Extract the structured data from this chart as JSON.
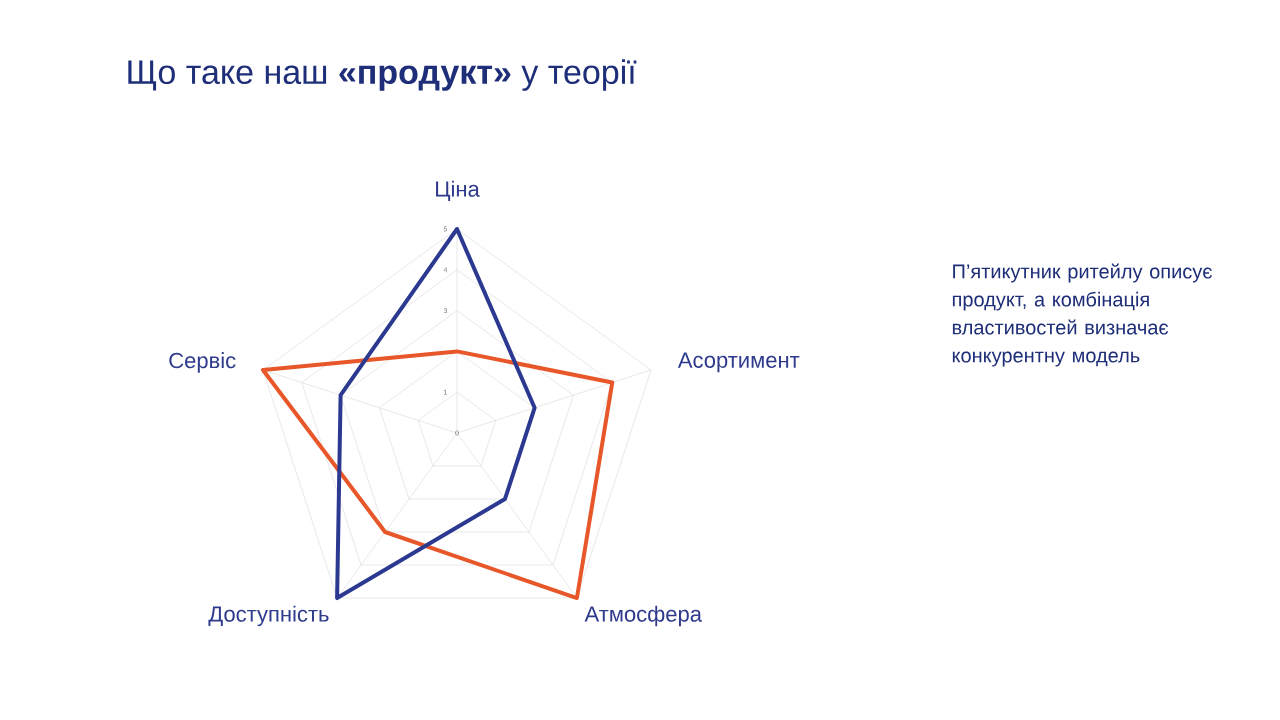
{
  "chart_data": {
    "type": "radar",
    "title": "Що таке наш **«продукт»** у теорії",
    "categories": [
      "Ціна",
      "Асортимент",
      "Атмосфера",
      "Доступність",
      "Сервіс"
    ],
    "series": [
      {
        "color": "#e8572a",
        "values": [
          2,
          4,
          5,
          3,
          5
        ]
      },
      {
        "color": "#2b3990",
        "values": [
          5,
          2,
          2,
          5,
          3
        ]
      }
    ],
    "ylim": [
      0,
      5
    ],
    "yticks": [
      0,
      1,
      3,
      4,
      5
    ],
    "grid": true,
    "annotations": [
      "П’ятикутник ритейлу описує продукт, а комбінація властивостей визначає конкурентну модель"
    ]
  }
}
